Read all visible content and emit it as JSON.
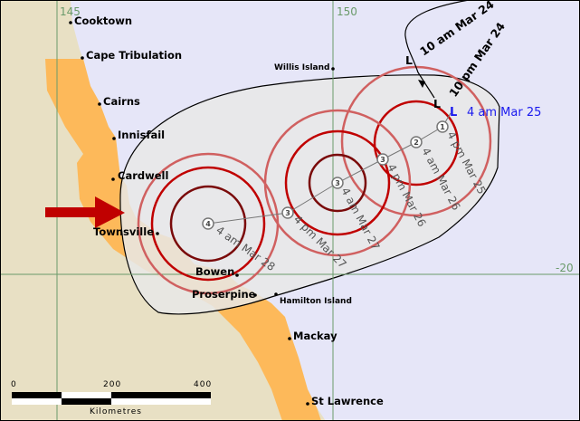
{
  "colors": {
    "ocean": "#e6e6f8",
    "land": "#e8e0c4",
    "warning_zone": "#fdb95a",
    "track_cone": "#e8e8e8",
    "gale_circle": "#d06060",
    "storm_circle": "#c00000",
    "hurricane_circle": "#7a0a0a",
    "current_position": "#1a1aee",
    "arrow": "#c00000"
  },
  "grid_labels": {
    "lon_145": "145",
    "lon_150": "150",
    "lat_minus20": "-20"
  },
  "places": [
    {
      "name": "Cooktown"
    },
    {
      "name": "Cape Tribulation"
    },
    {
      "name": "Cairns"
    },
    {
      "name": "Innisfail"
    },
    {
      "name": "Cardwell"
    },
    {
      "name": "Townsville"
    },
    {
      "name": "Bowen"
    },
    {
      "name": "Proserpine"
    },
    {
      "name": "Hamilton Island"
    },
    {
      "name": "Mackay"
    },
    {
      "name": "St Lawrence"
    },
    {
      "name": "Willis Island"
    }
  ],
  "past_track": [
    {
      "time": "10 am Mar 24",
      "symbol": "L"
    },
    {
      "time": "10 pm Mar 24",
      "symbol": "L"
    }
  ],
  "current_position": {
    "time": "4 am Mar 25",
    "symbol": "L"
  },
  "forecast": [
    {
      "category": "1",
      "time": "4 pm Mar 25"
    },
    {
      "category": "2",
      "time": "4 am Mar 26"
    },
    {
      "category": "3",
      "time": "4 pm Mar 26"
    },
    {
      "category": "3",
      "time": "4 am Mar 27"
    },
    {
      "category": "3",
      "time": "4 pm Mar 27"
    },
    {
      "category": "4",
      "time": "4 am Mar 28"
    }
  ],
  "scale_bar": {
    "ticks": [
      "0",
      "200",
      "400"
    ],
    "unit": "Kilometres"
  }
}
